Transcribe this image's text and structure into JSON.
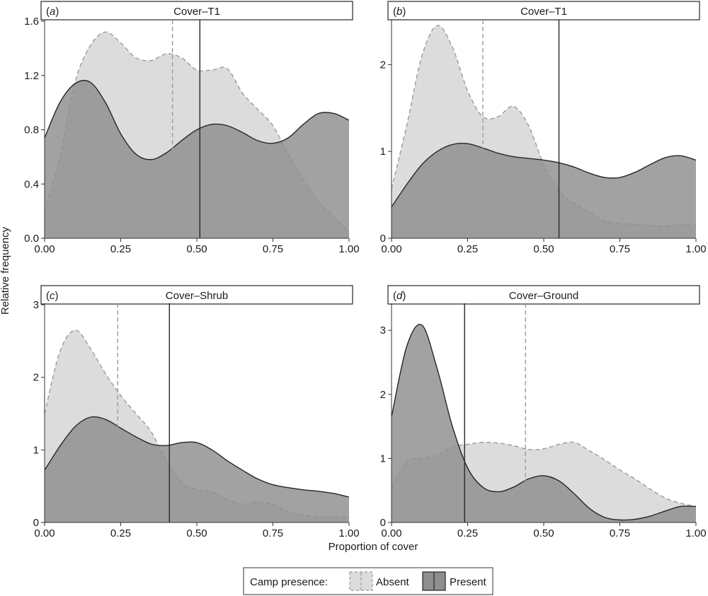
{
  "x_axis_title": "Proportion of cover",
  "y_axis_title": "Relative frequency",
  "legend": {
    "title": "Camp presence:",
    "entries": [
      {
        "label": "Absent",
        "fill": "#dcdcdc",
        "line": "#9a9a9a",
        "style": "dashed"
      },
      {
        "label": "Present",
        "fill": "#8e8e8e",
        "line": "#262626",
        "style": "solid"
      }
    ]
  },
  "colors": {
    "absent_fill": "#dcdcdc",
    "absent_line": "#9a9a9a",
    "present_fill": "#8e8e8e",
    "present_line": "#262626",
    "strip_border": "#262626"
  },
  "chart_data": [
    {
      "type": "area",
      "panel_tag": "a",
      "strip_label": "Cover–T1",
      "xlim": [
        0,
        1
      ],
      "ylim": [
        0,
        1.6
      ],
      "x_ticks": [
        "0.00",
        "0.25",
        "0.50",
        "0.75",
        "1.00"
      ],
      "y_ticks": [
        "0.0",
        "0.4",
        "0.8",
        "1.2",
        "1.6"
      ],
      "x_tick_values": [
        0,
        0.25,
        0.5,
        0.75,
        1
      ],
      "y_tick_values": [
        0,
        0.4,
        0.8,
        1.2,
        1.6
      ],
      "series": [
        {
          "name": "Absent",
          "x": [
            0,
            0.05,
            0.1,
            0.15,
            0.2,
            0.25,
            0.3,
            0.35,
            0.4,
            0.45,
            0.5,
            0.55,
            0.6,
            0.65,
            0.7,
            0.75,
            0.8,
            0.85,
            0.9,
            0.95,
            1.0
          ],
          "y": [
            0.2,
            0.6,
            1.15,
            1.42,
            1.52,
            1.44,
            1.33,
            1.31,
            1.36,
            1.33,
            1.24,
            1.24,
            1.25,
            1.07,
            0.95,
            0.83,
            0.62,
            0.43,
            0.27,
            0.16,
            0.05
          ],
          "mean": 0.42
        },
        {
          "name": "Present",
          "x": [
            0,
            0.05,
            0.1,
            0.15,
            0.2,
            0.25,
            0.3,
            0.35,
            0.4,
            0.45,
            0.5,
            0.55,
            0.6,
            0.65,
            0.7,
            0.75,
            0.8,
            0.85,
            0.9,
            0.95,
            1.0
          ],
          "y": [
            0.74,
            1.0,
            1.14,
            1.15,
            1.0,
            0.77,
            0.62,
            0.58,
            0.63,
            0.72,
            0.8,
            0.84,
            0.83,
            0.78,
            0.72,
            0.7,
            0.74,
            0.84,
            0.92,
            0.92,
            0.87
          ],
          "mean": 0.51
        }
      ]
    },
    {
      "type": "area",
      "panel_tag": "b",
      "strip_label": "Cover–T1",
      "xlim": [
        0,
        1
      ],
      "ylim": [
        0,
        2.5
      ],
      "x_ticks": [
        "0.00",
        "0.25",
        "0.50",
        "0.75",
        "1.00"
      ],
      "y_ticks": [
        "0",
        "1",
        "2"
      ],
      "x_tick_values": [
        0,
        0.25,
        0.5,
        0.75,
        1
      ],
      "y_tick_values": [
        0,
        1,
        2
      ],
      "series": [
        {
          "name": "Absent",
          "x": [
            0,
            0.05,
            0.1,
            0.15,
            0.2,
            0.25,
            0.3,
            0.35,
            0.4,
            0.45,
            0.5,
            0.55,
            0.6,
            0.65,
            0.7,
            0.75,
            0.8,
            0.85,
            0.9,
            0.95,
            1.0
          ],
          "y": [
            0.57,
            1.3,
            2.1,
            2.45,
            2.2,
            1.7,
            1.4,
            1.4,
            1.52,
            1.3,
            0.85,
            0.55,
            0.4,
            0.3,
            0.2,
            0.17,
            0.16,
            0.15,
            0.14,
            0.16,
            0.15
          ],
          "mean": 0.3
        },
        {
          "name": "Present",
          "x": [
            0,
            0.05,
            0.1,
            0.15,
            0.2,
            0.25,
            0.3,
            0.35,
            0.4,
            0.45,
            0.5,
            0.55,
            0.6,
            0.65,
            0.7,
            0.75,
            0.8,
            0.85,
            0.9,
            0.95,
            1.0
          ],
          "y": [
            0.36,
            0.62,
            0.85,
            1.0,
            1.08,
            1.09,
            1.04,
            0.98,
            0.94,
            0.92,
            0.9,
            0.87,
            0.82,
            0.75,
            0.7,
            0.7,
            0.76,
            0.85,
            0.93,
            0.95,
            0.9
          ],
          "mean": 0.55
        }
      ]
    },
    {
      "type": "area",
      "panel_tag": "c",
      "strip_label": "Cover–Shrub",
      "xlim": [
        0,
        1
      ],
      "ylim": [
        0,
        3
      ],
      "x_ticks": [
        "0.00",
        "0.25",
        "0.50",
        "0.75",
        "1.00"
      ],
      "y_ticks": [
        "0",
        "1",
        "2",
        "3"
      ],
      "x_tick_values": [
        0,
        0.25,
        0.5,
        0.75,
        1
      ],
      "y_tick_values": [
        0,
        1,
        2,
        3
      ],
      "series": [
        {
          "name": "Absent",
          "x": [
            0,
            0.05,
            0.1,
            0.15,
            0.2,
            0.25,
            0.3,
            0.35,
            0.4,
            0.45,
            0.5,
            0.55,
            0.6,
            0.65,
            0.7,
            0.75,
            0.8,
            0.85,
            0.9,
            0.95,
            1.0
          ],
          "y": [
            1.5,
            2.35,
            2.65,
            2.4,
            2.05,
            1.75,
            1.5,
            1.25,
            0.85,
            0.55,
            0.45,
            0.42,
            0.32,
            0.25,
            0.28,
            0.25,
            0.15,
            0.1,
            0.08,
            0.08,
            0.08
          ],
          "mean": 0.24
        },
        {
          "name": "Present",
          "x": [
            0,
            0.05,
            0.1,
            0.15,
            0.2,
            0.25,
            0.3,
            0.35,
            0.4,
            0.45,
            0.5,
            0.55,
            0.6,
            0.65,
            0.7,
            0.75,
            0.8,
            0.85,
            0.9,
            0.95,
            1.0
          ],
          "y": [
            0.72,
            1.05,
            1.32,
            1.45,
            1.42,
            1.3,
            1.18,
            1.08,
            1.06,
            1.1,
            1.1,
            1.0,
            0.85,
            0.72,
            0.6,
            0.52,
            0.48,
            0.45,
            0.43,
            0.4,
            0.35
          ],
          "mean": 0.41
        }
      ]
    },
    {
      "type": "area",
      "panel_tag": "d",
      "strip_label": "Cover–Ground",
      "xlim": [
        0,
        1
      ],
      "ylim": [
        0,
        3.4
      ],
      "x_ticks": [
        "0.00",
        "0.25",
        "0.50",
        "0.75",
        "1.00"
      ],
      "y_ticks": [
        "0",
        "1",
        "2",
        "3"
      ],
      "x_tick_values": [
        0,
        0.25,
        0.5,
        0.75,
        1
      ],
      "y_tick_values": [
        0,
        1,
        2,
        3
      ],
      "series": [
        {
          "name": "Absent",
          "x": [
            0,
            0.05,
            0.1,
            0.15,
            0.2,
            0.25,
            0.3,
            0.35,
            0.4,
            0.45,
            0.5,
            0.55,
            0.6,
            0.65,
            0.7,
            0.75,
            0.8,
            0.85,
            0.9,
            0.95,
            1.0
          ],
          "y": [
            0.55,
            0.95,
            1.0,
            1.05,
            1.18,
            1.22,
            1.25,
            1.24,
            1.2,
            1.14,
            1.15,
            1.22,
            1.25,
            1.12,
            0.98,
            0.82,
            0.68,
            0.52,
            0.38,
            0.3,
            0.25
          ],
          "mean": 0.44
        },
        {
          "name": "Present",
          "x": [
            0,
            0.05,
            0.1,
            0.15,
            0.2,
            0.25,
            0.3,
            0.35,
            0.4,
            0.45,
            0.5,
            0.55,
            0.6,
            0.65,
            0.7,
            0.75,
            0.8,
            0.85,
            0.9,
            0.95,
            1.0
          ],
          "y": [
            1.65,
            2.75,
            3.08,
            2.4,
            1.5,
            0.85,
            0.55,
            0.48,
            0.55,
            0.68,
            0.73,
            0.65,
            0.45,
            0.22,
            0.08,
            0.04,
            0.05,
            0.1,
            0.18,
            0.25,
            0.25
          ],
          "mean": 0.24
        }
      ]
    }
  ]
}
